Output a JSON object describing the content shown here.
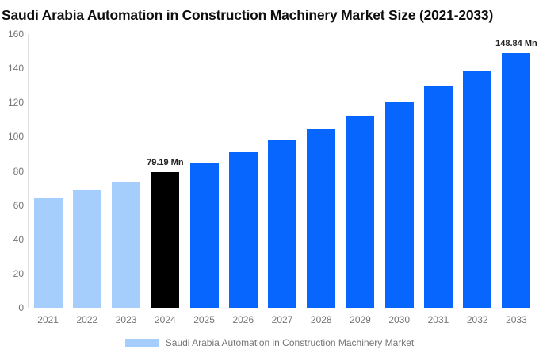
{
  "window": {
    "background": "#ffffff"
  },
  "chart_data": {
    "type": "bar",
    "title": "Saudi Arabia Automation in Construction Machinery Market Size (2021-2033)",
    "categories": [
      "2021",
      "2022",
      "2023",
      "2024",
      "2025",
      "2026",
      "2027",
      "2028",
      "2029",
      "2030",
      "2031",
      "2032",
      "2033"
    ],
    "values": [
      64.17,
      68.83,
      73.83,
      79.19,
      84.94,
      91.11,
      97.72,
      104.81,
      112.42,
      120.58,
      129.33,
      138.72,
      148.84
    ],
    "unit": "Mn",
    "ylim": [
      0,
      160
    ],
    "yticks": [
      0,
      20,
      40,
      60,
      80,
      100,
      120,
      140,
      160
    ],
    "grid": false,
    "legend_position": "bottom",
    "legend": "Saudi Arabia Automation in Construction Machinery Market",
    "annotations": [
      {
        "category": "2024",
        "text": "79.19 Mn"
      },
      {
        "category": "2033",
        "text": "148.84 Mn"
      }
    ],
    "bar_colors": [
      "#A6CEFC",
      "#A6CEFC",
      "#A6CEFC",
      "#000000",
      "#0666FE",
      "#0666FE",
      "#0666FE",
      "#0666FE",
      "#0666FE",
      "#0666FE",
      "#0666FE",
      "#0666FE",
      "#0666FE"
    ],
    "colors": {
      "historical": "#A6CEFC",
      "current": "#000000",
      "forecast": "#0666FE",
      "axis_line": "#e0e0e0",
      "tick_text": "#757575",
      "data_label": "#222222",
      "title_text": "#0f0f0f",
      "legend_swatch": "#A6CEFC"
    }
  }
}
